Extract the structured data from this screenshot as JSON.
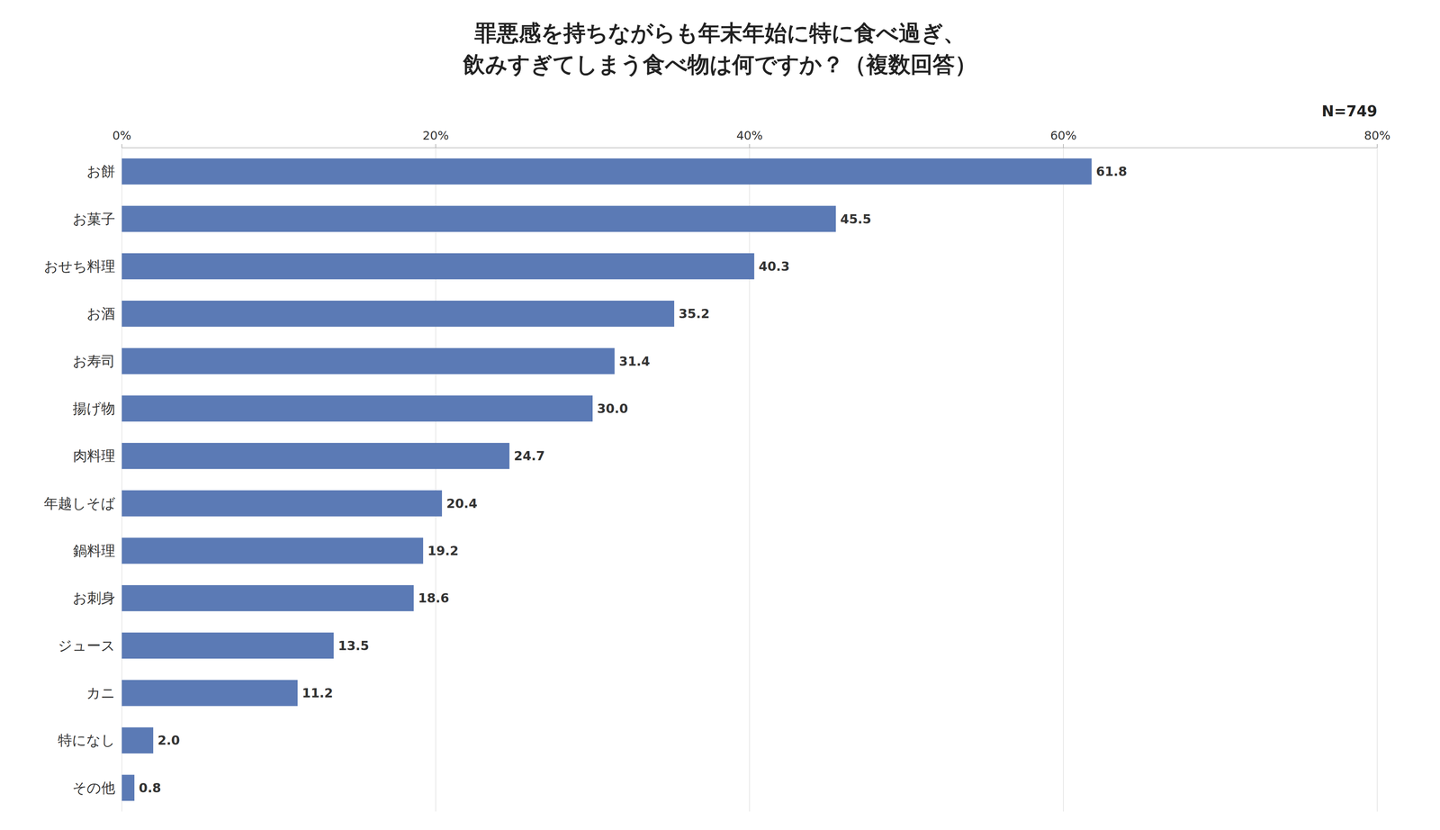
{
  "chart_data": {
    "type": "bar",
    "orientation": "horizontal",
    "title": "罪悪感を持ちながらも年末年始に特に食べ過ぎ、",
    "subtitle": "飲みすぎてしまう食べ物は何ですか？（複数回答）",
    "annotations": [
      "N=749"
    ],
    "categories": [
      "お餅",
      "お菓子",
      "おせち料理",
      "お酒",
      "お寿司",
      "揚げ物",
      "肉料理",
      "年越しそば",
      "鍋料理",
      "お刺身",
      "ジュース",
      "カニ",
      "特になし",
      "その他"
    ],
    "values": [
      61.8,
      45.5,
      40.3,
      35.2,
      31.4,
      30.0,
      24.7,
      20.4,
      19.2,
      18.6,
      13.5,
      11.2,
      2.0,
      0.8
    ],
    "value_labels": [
      "61.8",
      "45.5",
      "40.3",
      "35.2",
      "31.4",
      "30.0",
      "24.7",
      "20.4",
      "19.2",
      "18.6",
      "13.5",
      "11.2",
      "2.0",
      "0.8"
    ],
    "color": "#5b7ab5",
    "xlim": [
      0,
      80
    ],
    "xticks": [
      {
        "value": 0,
        "label": "0%"
      },
      {
        "value": 20,
        "label": "20%"
      },
      {
        "value": 40,
        "label": "40%"
      },
      {
        "value": 60,
        "label": "60%"
      },
      {
        "value": 80,
        "label": "80%"
      }
    ],
    "grid": true,
    "data_labels": true
  }
}
